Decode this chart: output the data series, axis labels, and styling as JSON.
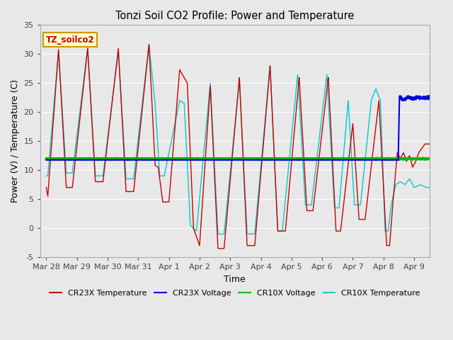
{
  "title": "Tonzi Soil CO2 Profile: Power and Temperature",
  "xlabel": "Time",
  "ylabel": "Power (V) / Temperature (C)",
  "ylim": [
    -5,
    35
  ],
  "yticks": [
    -5,
    0,
    5,
    10,
    15,
    20,
    25,
    30,
    35
  ],
  "bg_color": "#e8e8e8",
  "grid_color": "#ffffff",
  "annotation_text": "TZ_soilco2",
  "annotation_fg": "#cc0000",
  "annotation_bg": "#ffffcc",
  "annotation_border": "#cc9900",
  "tick_labels": [
    "Mar 28",
    "Mar 29",
    "Mar 30",
    "Mar 31",
    "Apr 1",
    "Apr 2",
    "Apr 3",
    "Apr 4",
    "Apr 5",
    "Apr 6",
    "Apr 7",
    "Apr 8",
    "Apr 9"
  ],
  "cr23x_color": "#cc0000",
  "cr10x_color": "#00cccc",
  "cr23x_volt_color": "#0000dd",
  "cr10x_volt_color": "#00bb00",
  "cr23x_volt_level": 11.75,
  "cr10x_volt_level": 11.95,
  "cr23x_volt_jump": 22.5,
  "cr23x_volt_jump_day": 11.5
}
